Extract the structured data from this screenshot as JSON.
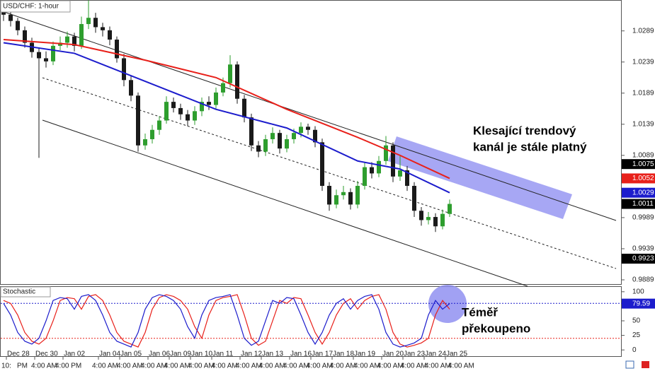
{
  "chart_data": [
    {
      "type": "candlestick",
      "title": "USD/CHF: 1-hour",
      "categories": [
        null,
        "Dec 28",
        null,
        null,
        null,
        "Dec 30",
        null,
        null,
        null,
        "Jan 02",
        null,
        null,
        null,
        null,
        "Jan 04",
        null,
        null,
        "Jan 05",
        null,
        null,
        null,
        "Jan 06",
        null,
        null,
        "Jan 09",
        null,
        null,
        "Jan 10",
        null,
        null,
        "Jan 11",
        null,
        null,
        null,
        "Jan 12",
        null,
        null,
        "Jan 13",
        null,
        null,
        null,
        "Jan 16",
        null,
        null,
        "Jan 17",
        null,
        null,
        "Jan 18",
        null,
        null,
        "Jan 19",
        null,
        null,
        null,
        "Jan 20",
        null,
        null,
        "Jan 23",
        null,
        null,
        "Jan 24",
        null,
        null,
        "Jan 25"
      ],
      "time_labels": [
        "10:",
        "PM",
        "4:00 AM",
        "4:00 PM",
        "4:00 AM",
        "4:00 AM",
        "4:00 AM",
        "4:00 AM",
        "4:00 AM",
        "4:00 AM",
        "4:00 AM",
        "4:00 AM",
        "4:00 AM",
        "4:00 AM",
        "4:00 AM",
        "4:00 AM",
        "4:00 AM",
        "4:00 AM",
        "4:00 AM",
        "4:00 AM"
      ],
      "open": [
        1.032,
        1.0315,
        1.0305,
        1.029,
        1.027,
        1.0255,
        1.0245,
        1.024,
        1.0265,
        1.027,
        1.028,
        1.0265,
        1.03,
        1.031,
        1.0295,
        1.029,
        1.0275,
        1.0245,
        1.021,
        1.0185,
        1.0105,
        1.0115,
        1.013,
        1.0145,
        1.0175,
        1.0165,
        1.0155,
        1.0145,
        1.016,
        1.0175,
        1.017,
        1.019,
        1.0205,
        1.0235,
        1.018,
        1.015,
        1.0105,
        1.0095,
        1.0115,
        1.0125,
        1.01,
        1.0115,
        1.0125,
        1.0135,
        1.013,
        1.011,
        1.004,
        1.001,
        1.0025,
        1.003,
        1.001,
        1.004,
        1.007,
        1.006,
        1.008,
        1.0105,
        1.0055,
        1.0065,
        1.004,
        1.0,
        0.9985,
        0.999,
        0.9975,
        0.9995
      ],
      "high": [
        1.0328,
        1.0322,
        1.031,
        1.0296,
        1.0278,
        1.0262,
        1.0256,
        1.0272,
        1.028,
        1.0288,
        1.0286,
        1.0312,
        1.0338,
        1.0318,
        1.0302,
        1.0296,
        1.028,
        1.0252,
        1.0218,
        1.019,
        1.0124,
        1.0138,
        1.0152,
        1.0184,
        1.0182,
        1.0172,
        1.0162,
        1.0168,
        1.0182,
        1.0184,
        1.0198,
        1.0214,
        1.025,
        1.024,
        1.0186,
        1.0156,
        1.0112,
        1.0122,
        1.0134,
        1.013,
        1.0122,
        1.0132,
        1.0142,
        1.014,
        1.0136,
        1.0116,
        1.0046,
        1.0034,
        1.004,
        1.0036,
        1.0048,
        1.0078,
        1.0078,
        1.0088,
        1.012,
        1.011,
        1.009,
        1.0072,
        1.0046,
        1.0006,
        0.9998,
        0.9996,
        1.0002,
        1.0018
      ],
      "low": [
        1.0305,
        1.0296,
        1.0282,
        1.0262,
        1.0246,
        1.0085,
        1.023,
        1.0234,
        1.0258,
        1.0262,
        1.0256,
        1.026,
        1.0292,
        1.0286,
        1.028,
        1.0266,
        1.0238,
        1.02,
        1.0176,
        1.0095,
        1.0098,
        1.0108,
        1.0122,
        1.014,
        1.0158,
        1.0146,
        1.0136,
        1.0138,
        1.0152,
        1.0162,
        1.0164,
        1.0184,
        1.0198,
        1.0172,
        1.0142,
        1.0096,
        1.0086,
        1.0088,
        1.0108,
        1.0092,
        1.0094,
        1.0108,
        1.0118,
        1.0122,
        1.0102,
        1.0032,
        1.0,
        1.0004,
        1.0018,
        1.0002,
        1.0004,
        1.0034,
        1.0052,
        1.0054,
        1.0074,
        1.0046,
        1.0048,
        1.0032,
        0.999,
        0.9976,
        0.9978,
        0.9966,
        0.997,
        0.999
      ],
      "close": [
        1.0315,
        1.0305,
        1.029,
        1.027,
        1.0255,
        1.0245,
        1.024,
        1.0265,
        1.027,
        1.028,
        1.0265,
        1.03,
        1.031,
        1.0295,
        1.029,
        1.0275,
        1.0245,
        1.021,
        1.0185,
        1.0105,
        1.0115,
        1.013,
        1.0145,
        1.0175,
        1.0165,
        1.0155,
        1.0145,
        1.016,
        1.0175,
        1.017,
        1.019,
        1.0205,
        1.0235,
        1.018,
        1.015,
        1.0105,
        1.0095,
        1.0115,
        1.0125,
        1.01,
        1.0115,
        1.0125,
        1.0135,
        1.013,
        1.011,
        1.004,
        1.001,
        1.0025,
        1.003,
        1.001,
        1.004,
        1.007,
        1.006,
        1.008,
        1.0105,
        1.0055,
        1.0065,
        1.004,
        1.0,
        0.9985,
        0.999,
        0.9975,
        0.9995,
        1.0011
      ],
      "up_color": "#2e9e2e",
      "down_color": "#1a1a1a",
      "series": [
        {
          "color": "#e8201a",
          "x": [
            0,
            10,
            20,
            30,
            40,
            50,
            56,
            63
          ],
          "values": [
            1.0275,
            1.0267,
            1.0242,
            1.0214,
            1.0163,
            1.0118,
            1.0089,
            1.0052
          ]
        },
        {
          "color": "#1c1ccc",
          "x": [
            0,
            10,
            20,
            30,
            40,
            50,
            56,
            63
          ],
          "values": [
            1.027,
            1.0253,
            1.0208,
            1.0163,
            1.0133,
            1.008,
            1.0067,
            1.0029
          ]
        }
      ],
      "level_labels": [
        1.0075,
        0.9923
      ],
      "ylim": [
        0.98822,
        1.03375
      ],
      "yticks": [
        1.0289,
        1.0239,
        1.0189,
        1.0139,
        1.0089,
        0.9989,
        0.9939,
        0.9889
      ],
      "annotation": [
        "Klesající trendový",
        "kanál je stále platný"
      ]
    },
    {
      "type": "line",
      "title": "Stochastic",
      "series": [
        {
          "color": "#1c1ccc",
          "values": [
            80,
            60,
            30,
            15,
            10,
            20,
            50,
            85,
            90,
            88,
            70,
            92,
            95,
            85,
            60,
            30,
            15,
            10,
            5,
            30,
            70,
            90,
            95,
            92,
            85,
            70,
            40,
            20,
            60,
            85,
            90,
            92,
            95,
            60,
            20,
            8,
            15,
            50,
            85,
            80,
            90,
            88,
            60,
            30,
            10,
            30,
            60,
            80,
            88,
            70,
            85,
            92,
            95,
            70,
            30,
            10,
            5,
            8,
            12,
            20,
            60,
            85,
            70,
            79.59
          ]
        },
        {
          "color": "#e8201a",
          "values": [
            85,
            80,
            60,
            30,
            15,
            10,
            20,
            50,
            85,
            90,
            88,
            70,
            92,
            95,
            85,
            60,
            30,
            15,
            10,
            5,
            30,
            70,
            90,
            95,
            92,
            85,
            70,
            40,
            20,
            60,
            85,
            90,
            92,
            95,
            60,
            20,
            8,
            15,
            50,
            85,
            80,
            90,
            88,
            60,
            30,
            10,
            30,
            60,
            80,
            88,
            70,
            85,
            92,
            95,
            70,
            30,
            10,
            5,
            8,
            12,
            20,
            60,
            85,
            70
          ]
        }
      ],
      "levels": [
        80,
        20
      ],
      "ylim": [
        -10.7,
        108.3
      ],
      "yticks": [
        0,
        25,
        50,
        75,
        100
      ],
      "annotation": [
        "Téměř",
        "překoupeno"
      ]
    }
  ]
}
